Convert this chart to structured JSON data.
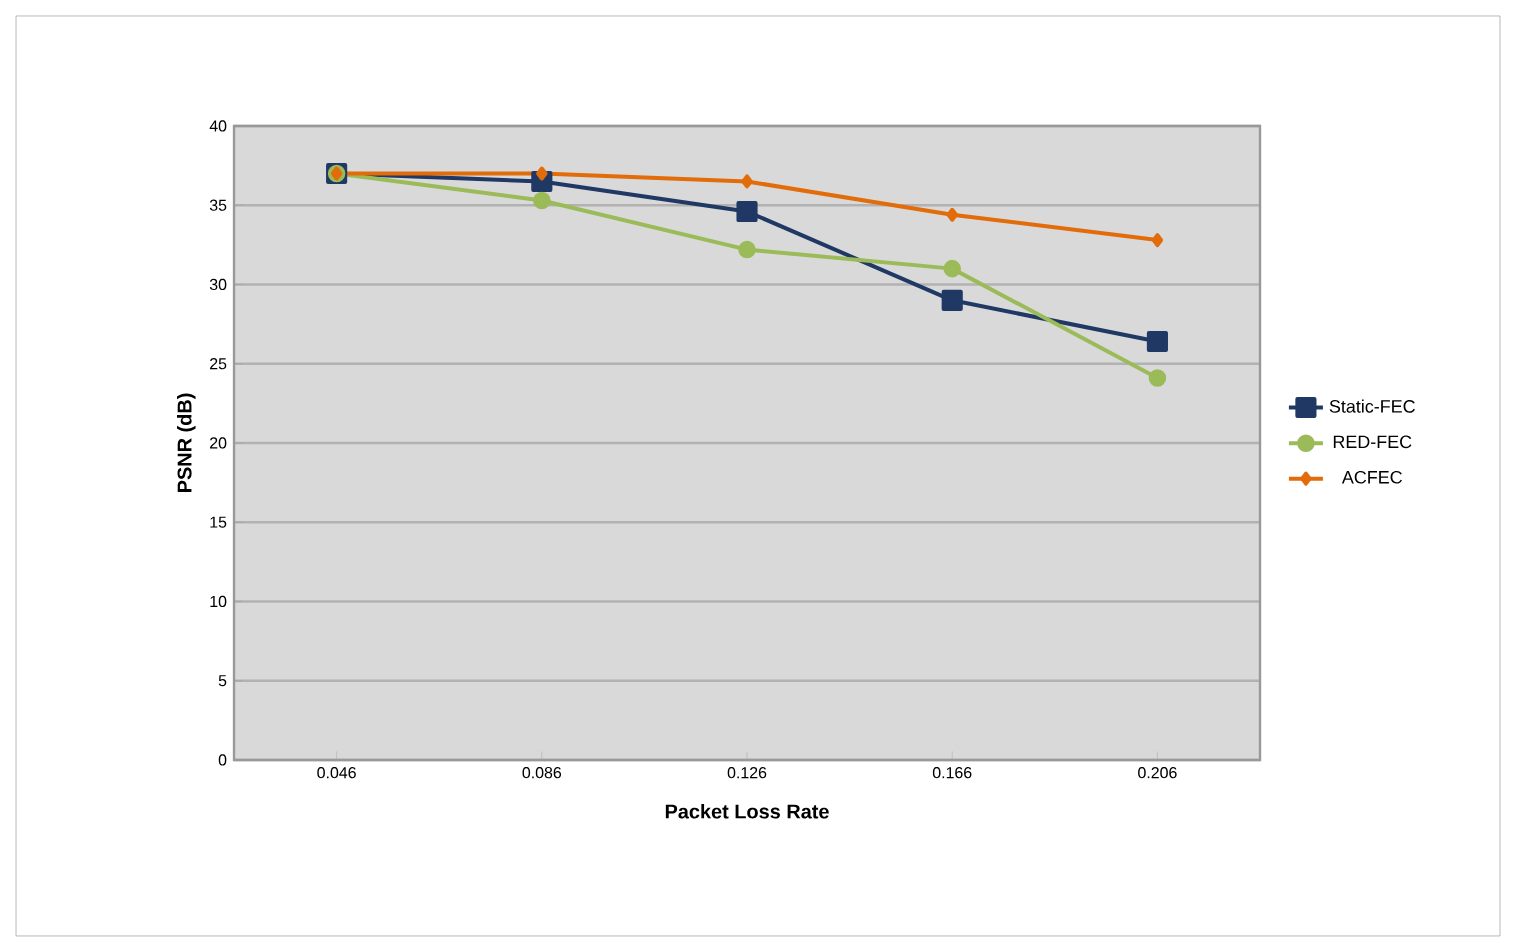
{
  "chart_data": {
    "type": "line",
    "xlabel": "Packet Loss Rate",
    "ylabel": "PSNR (dB)",
    "categories": [
      "0.046",
      "0.086",
      "0.126",
      "0.166",
      "0.206"
    ],
    "series": [
      {
        "name": "Static-FEC",
        "color": "#1f3864",
        "marker": "square",
        "values": [
          37.0,
          36.5,
          34.6,
          29.0,
          26.4
        ]
      },
      {
        "name": "RED-FEC",
        "color": "#9bbb59",
        "marker": "circle",
        "values": [
          37.0,
          35.3,
          32.2,
          31.0,
          24.1
        ]
      },
      {
        "name": "ACFEC",
        "color": "#e36c0a",
        "marker": "diamond",
        "values": [
          37.0,
          37.0,
          36.5,
          34.4,
          32.8
        ]
      }
    ],
    "ylim": [
      0,
      40
    ],
    "yticks": [
      0,
      5,
      10,
      15,
      20,
      25,
      30,
      35,
      40
    ],
    "grid": "y",
    "legend": "right",
    "line_style": "solid"
  }
}
